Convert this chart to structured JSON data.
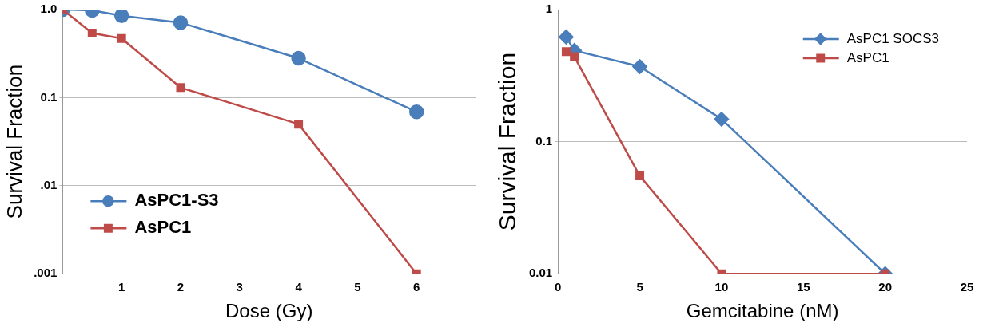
{
  "chart_data": [
    {
      "type": "line",
      "xlabel": "Dose (Gy)",
      "ylabel": "Survival Fraction",
      "log": "y",
      "grid": "y",
      "legend": "bottom left",
      "xlim": [
        0,
        7
      ],
      "xticks": [
        1,
        2,
        3,
        4,
        5,
        6
      ],
      "ylim": [
        0.001,
        1
      ],
      "yticks": [
        {
          "value": 0.001,
          "label": ".001"
        },
        {
          "value": 0.01,
          "label": ".01"
        },
        {
          "value": 0.1,
          "label": "0.1"
        },
        {
          "value": 1,
          "label": "1.0"
        }
      ],
      "series": [
        {
          "name": "AsPC1-S3",
          "color": "#4a7ebb",
          "marker": "circle",
          "x": [
            0,
            0.5,
            1,
            2,
            4,
            6
          ],
          "values": [
            1.0,
            0.98,
            0.85,
            0.71,
            0.28,
            0.069
          ]
        },
        {
          "name": "AsPC1",
          "color": "#be4b48",
          "marker": "square",
          "x": [
            0,
            0.5,
            1,
            2,
            4,
            6
          ],
          "values": [
            1.0,
            0.54,
            0.47,
            0.13,
            0.05,
            0.001
          ]
        }
      ]
    },
    {
      "type": "line",
      "xlabel": "Gemcitabine (nM)",
      "ylabel": "Survival Fraction",
      "log": "y",
      "grid": "y",
      "legend": "top right",
      "xlim": [
        0,
        25
      ],
      "xticks": [
        0,
        5,
        10,
        15,
        20,
        25
      ],
      "ylim": [
        0.01,
        1
      ],
      "yticks": [
        {
          "value": 0.01,
          "label": "0.01"
        },
        {
          "value": 0.1,
          "label": "0.1"
        },
        {
          "value": 1,
          "label": "1"
        }
      ],
      "series": [
        {
          "name": "AsPC1 SOCS3",
          "color": "#4a7ebb",
          "marker": "diamond",
          "x": [
            0.5,
            1,
            5,
            10,
            20
          ],
          "values": [
            0.62,
            0.49,
            0.37,
            0.148,
            0.01
          ]
        },
        {
          "name": "AsPC1",
          "color": "#be4b48",
          "marker": "square",
          "x": [
            0.5,
            1,
            5,
            10,
            20
          ],
          "values": [
            0.48,
            0.44,
            0.055,
            0.01,
            0.01
          ]
        }
      ]
    }
  ]
}
